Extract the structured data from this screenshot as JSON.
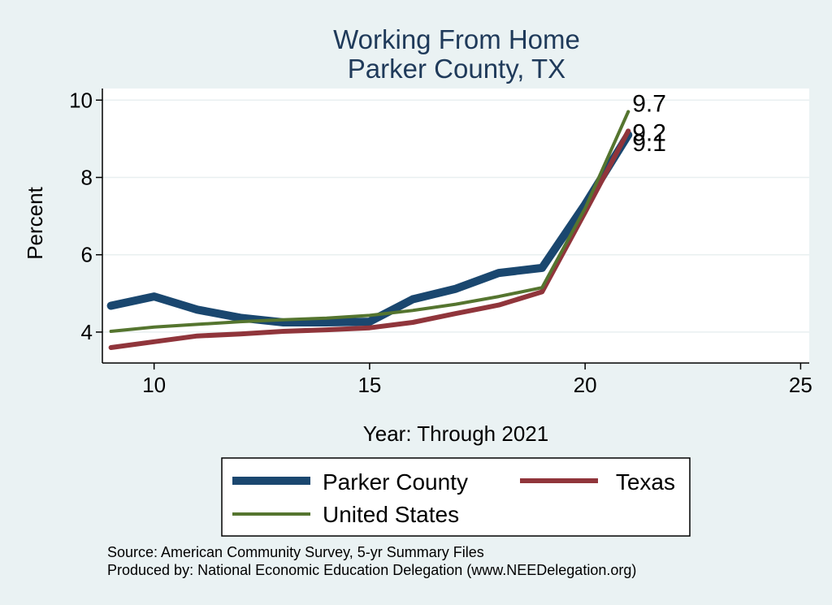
{
  "chart_data": {
    "type": "line",
    "title": [
      "Working From Home",
      "Parker County, TX"
    ],
    "xlabel": "Year: Through 2021",
    "ylabel": "Percent",
    "xlim": [
      8.8,
      25.2
    ],
    "ylim": [
      3.2,
      10.3
    ],
    "xticks": [
      10,
      15,
      20,
      25
    ],
    "yticks": [
      4,
      6,
      8,
      10
    ],
    "grid": true,
    "legend_position": "bottom",
    "x": [
      9,
      10,
      11,
      12,
      13,
      14,
      15,
      16,
      17,
      18,
      19,
      20,
      21
    ],
    "series": [
      {
        "name": "Parker County",
        "color": "#1a476f",
        "values": [
          4.68,
          4.92,
          4.58,
          4.37,
          4.25,
          4.25,
          4.27,
          4.85,
          5.12,
          5.53,
          5.66,
          7.3,
          9.1
        ]
      },
      {
        "name": "Texas",
        "color": "#90353b",
        "values": [
          3.6,
          3.75,
          3.9,
          3.95,
          4.02,
          4.06,
          4.11,
          4.25,
          4.48,
          4.7,
          5.04,
          7.1,
          9.2
        ]
      },
      {
        "name": "United States",
        "color": "#55752f",
        "values": [
          4.02,
          4.13,
          4.2,
          4.27,
          4.32,
          4.36,
          4.43,
          4.56,
          4.72,
          4.92,
          5.15,
          7.2,
          9.7
        ]
      }
    ],
    "end_labels": [
      {
        "text": "9.7",
        "x": 21,
        "y": 9.7
      },
      {
        "text": "9.2",
        "x": 21,
        "y": 9.2
      },
      {
        "text": "9.1",
        "x": 21,
        "y": 9.1
      }
    ]
  },
  "notes": [
    "Source: American Community Survey, 5-yr Summary Files",
    "Produced by: National Economic Education Delegation (www.NEEDelegation.org)"
  ]
}
